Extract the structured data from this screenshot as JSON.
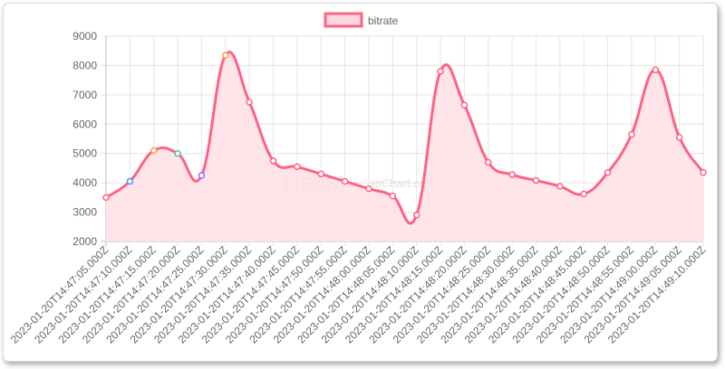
{
  "chart_data": {
    "type": "line",
    "fill": true,
    "smooth": true,
    "x": [
      "2023-01-20T14:47:05.000Z",
      "2023-01-20T14:47:10.000Z",
      "2023-01-20T14:47:15.000Z",
      "2023-01-20T14:47:20.000Z",
      "2023-01-20T14:47:25.000Z",
      "2023-01-20T14:47:30.000Z",
      "2023-01-20T14:47:35.000Z",
      "2023-01-20T14:47:40.000Z",
      "2023-01-20T14:47:45.000Z",
      "2023-01-20T14:47:50.000Z",
      "2023-01-20T14:47:55.000Z",
      "2023-01-20T14:48:00.000Z",
      "2023-01-20T14:48:05.000Z",
      "2023-01-20T14:48:10.000Z",
      "2023-01-20T14:48:15.000Z",
      "2023-01-20T14:48:20.000Z",
      "2023-01-20T14:48:25.000Z",
      "2023-01-20T14:48:30.000Z",
      "2023-01-20T14:48:35.000Z",
      "2023-01-20T14:48:40.000Z",
      "2023-01-20T14:48:45.000Z",
      "2023-01-20T14:48:50.000Z",
      "2023-01-20T14:48:55.000Z",
      "2023-01-20T14:49:00.000Z",
      "2023-01-20T14:49:05.000Z",
      "2023-01-20T14:49:10.000Z"
    ],
    "series": [
      {
        "name": "bitrate",
        "values": [
          3500,
          4050,
          5100,
          5000,
          4250,
          8350,
          6750,
          4750,
          4550,
          4300,
          4050,
          3800,
          3550,
          2900,
          7800,
          6650,
          4700,
          4280,
          4080,
          3880,
          3620,
          4350,
          5650,
          7850,
          5550,
          4350
        ],
        "line_color": "#ff6384",
        "fill_color": "#ffe0e6",
        "point_colors": [
          "#ff6384",
          "#36a2eb",
          "#ff9f40",
          "#4bc0c0",
          "#9966ff",
          "#ff9f40",
          "#ff6384",
          "#ff6384",
          "#ff6384",
          "#ff6384",
          "#ff6384",
          "#ff6384",
          "#ff6384",
          "#ff6384",
          "#ff6384",
          "#ff6384",
          "#ff6384",
          "#ff6384",
          "#ff6384",
          "#ff6384",
          "#ff6384",
          "#ff6384",
          "#ff6384",
          "#ff6384",
          "#ff6384",
          "#ff6384"
        ]
      }
    ],
    "ylim": [
      2000,
      9000
    ],
    "yticks": [
      2000,
      3000,
      4000,
      5000,
      6000,
      7000,
      8000,
      9000
    ],
    "grid": true,
    "legend_position": "top"
  },
  "watermark": {
    "main": "{JSON}",
    "sub": "toChart.com"
  }
}
